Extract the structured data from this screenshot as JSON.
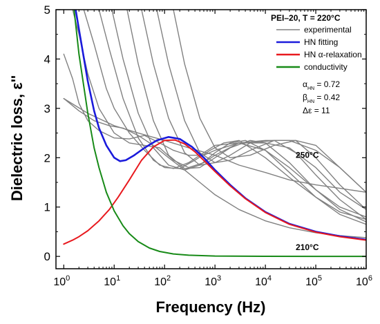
{
  "chart_data": {
    "type": "line",
    "x_scale": "log",
    "xlim": [
      0.7,
      1000000
    ],
    "ylim": [
      -0.25,
      5
    ],
    "xlabel": "Frequency (Hz)",
    "ylabel": "Dielectric loss, ε''",
    "x_tick_exponents": [
      0,
      1,
      2,
      3,
      4,
      5,
      6
    ],
    "x_tick_base": "10",
    "y_ticks": [
      "0",
      "1",
      "2",
      "3",
      "4",
      "5"
    ],
    "grid": false,
    "legend_title": "PEI–20, T = 220°C",
    "legend_position": "top-right",
    "legend": [
      {
        "label": "experimental",
        "color": "#808080"
      },
      {
        "label": "HN fitting",
        "color": "#1a1adb"
      },
      {
        "label": "HN α-relaxation",
        "color": "#e8191e"
      },
      {
        "label": "conductivity",
        "color": "#178a17"
      }
    ],
    "params": [
      {
        "sym": "α",
        "sub": "HN",
        "value": " = 0.72"
      },
      {
        "sym": "β",
        "sub": "HN",
        "value": " = 0.42"
      },
      {
        "sym": "Δε",
        "sub": "",
        "value": " = 11"
      }
    ],
    "annotations": [
      {
        "text": "250°C",
        "x": 40000,
        "y": 2.0
      },
      {
        "text": "210°C",
        "x": 40000,
        "y": 0.13
      }
    ],
    "series": [
      {
        "role": "experimental",
        "color": "#808080",
        "points": [
          [
            1,
            3.2
          ],
          [
            3,
            2.9
          ],
          [
            10,
            2.65
          ],
          [
            30,
            2.5
          ],
          [
            100,
            2.35
          ],
          [
            300,
            2.2
          ],
          [
            1000,
            2.05
          ],
          [
            3000,
            1.85
          ],
          [
            10000,
            1.7
          ],
          [
            30000,
            1.55
          ],
          [
            100000,
            1.45
          ],
          [
            300000,
            1.38
          ],
          [
            1000000,
            1.3
          ]
        ]
      },
      {
        "role": "experimental",
        "color": "#808080",
        "points": [
          [
            1,
            4.1
          ],
          [
            1.5,
            3.6
          ],
          [
            2,
            3.1
          ],
          [
            3,
            2.75
          ],
          [
            5,
            2.55
          ],
          [
            10,
            2.4
          ],
          [
            20,
            2.38
          ],
          [
            40,
            2.45
          ],
          [
            80,
            2.3
          ],
          [
            150,
            2.15
          ],
          [
            300,
            2.05
          ],
          [
            600,
            2.05
          ],
          [
            1000,
            2.15
          ],
          [
            3000,
            2.3
          ],
          [
            10000,
            2.35
          ],
          [
            30000,
            2.35
          ],
          [
            100000,
            2.15
          ],
          [
            300000,
            1.8
          ],
          [
            1000000,
            1.3
          ]
        ]
      },
      {
        "role": "experimental",
        "color": "#808080",
        "points": [
          [
            1.5,
            5.0
          ],
          [
            2,
            4.5
          ],
          [
            3,
            3.7
          ],
          [
            5,
            3.0
          ],
          [
            10,
            2.5
          ],
          [
            20,
            2.3
          ],
          [
            40,
            2.25
          ],
          [
            80,
            2.2
          ],
          [
            150,
            1.95
          ],
          [
            300,
            1.8
          ],
          [
            600,
            1.9
          ],
          [
            1000,
            2.05
          ],
          [
            3000,
            2.3
          ],
          [
            10000,
            2.3
          ],
          [
            30000,
            2.2
          ],
          [
            100000,
            1.8
          ],
          [
            300000,
            1.3
          ],
          [
            1000000,
            0.95
          ]
        ]
      },
      {
        "role": "experimental",
        "color": "#808080",
        "points": [
          [
            2.5,
            5.0
          ],
          [
            4,
            4.3
          ],
          [
            7,
            3.4
          ],
          [
            10,
            3.0
          ],
          [
            20,
            2.5
          ],
          [
            40,
            2.15
          ],
          [
            80,
            1.85
          ],
          [
            150,
            1.78
          ],
          [
            300,
            1.9
          ],
          [
            600,
            2.1
          ],
          [
            1000,
            2.25
          ],
          [
            3000,
            2.3
          ],
          [
            10000,
            2.15
          ],
          [
            30000,
            1.8
          ],
          [
            100000,
            1.35
          ],
          [
            300000,
            1.0
          ],
          [
            1000000,
            0.8
          ]
        ]
      },
      {
        "role": "experimental",
        "color": "#808080",
        "points": [
          [
            5,
            5.0
          ],
          [
            8,
            4.2
          ],
          [
            15,
            3.2
          ],
          [
            30,
            2.4
          ],
          [
            60,
            1.95
          ],
          [
            100,
            1.8
          ],
          [
            200,
            1.78
          ],
          [
            400,
            1.95
          ],
          [
            800,
            2.15
          ],
          [
            1500,
            2.3
          ],
          [
            3000,
            2.35
          ],
          [
            10000,
            2.0
          ],
          [
            30000,
            1.6
          ],
          [
            100000,
            1.2
          ],
          [
            300000,
            0.9
          ],
          [
            1000000,
            0.75
          ]
        ]
      },
      {
        "role": "experimental",
        "color": "#808080",
        "points": [
          [
            9,
            5.0
          ],
          [
            15,
            4.0
          ],
          [
            30,
            2.9
          ],
          [
            60,
            2.2
          ],
          [
            120,
            1.85
          ],
          [
            250,
            1.75
          ],
          [
            500,
            1.85
          ],
          [
            1000,
            2.1
          ],
          [
            2000,
            2.3
          ],
          [
            4000,
            2.35
          ],
          [
            10000,
            2.15
          ],
          [
            30000,
            1.7
          ],
          [
            100000,
            1.2
          ],
          [
            300000,
            0.85
          ],
          [
            1000000,
            0.65
          ]
        ]
      },
      {
        "role": "experimental",
        "color": "#808080",
        "points": [
          [
            18,
            5.0
          ],
          [
            30,
            3.9
          ],
          [
            60,
            2.75
          ],
          [
            120,
            2.05
          ],
          [
            250,
            1.78
          ],
          [
            500,
            1.8
          ],
          [
            1000,
            2.0
          ],
          [
            2000,
            2.2
          ],
          [
            5000,
            2.35
          ],
          [
            10000,
            2.3
          ],
          [
            30000,
            1.9
          ],
          [
            100000,
            1.35
          ],
          [
            300000,
            0.95
          ],
          [
            1000000,
            0.7
          ]
        ]
      },
      {
        "role": "experimental",
        "color": "#808080",
        "points": [
          [
            35,
            5.0
          ],
          [
            60,
            3.9
          ],
          [
            120,
            2.8
          ],
          [
            250,
            2.1
          ],
          [
            500,
            1.85
          ],
          [
            1000,
            1.9
          ],
          [
            2000,
            2.05
          ],
          [
            5000,
            2.3
          ],
          [
            15000,
            2.35
          ],
          [
            40000,
            2.1
          ],
          [
            100000,
            1.65
          ],
          [
            300000,
            1.15
          ],
          [
            1000000,
            0.75
          ]
        ]
      },
      {
        "role": "experimental",
        "color": "#808080",
        "points": [
          [
            70,
            5.0
          ],
          [
            120,
            3.9
          ],
          [
            250,
            2.75
          ],
          [
            500,
            2.1
          ],
          [
            1000,
            1.9
          ],
          [
            2000,
            1.95
          ],
          [
            5000,
            2.15
          ],
          [
            15000,
            2.35
          ],
          [
            40000,
            2.35
          ],
          [
            100000,
            2.0
          ],
          [
            300000,
            1.45
          ],
          [
            1000000,
            0.95
          ]
        ]
      },
      {
        "role": "experimental",
        "color": "#808080",
        "points": [
          [
            150,
            5.0
          ],
          [
            250,
            3.9
          ],
          [
            500,
            2.8
          ],
          [
            1000,
            2.2
          ],
          [
            2000,
            2.0
          ],
          [
            5000,
            2.05
          ],
          [
            15000,
            2.25
          ],
          [
            40000,
            2.35
          ],
          [
            100000,
            2.25
          ],
          [
            300000,
            1.8
          ],
          [
            1000000,
            1.3
          ]
        ]
      },
      {
        "role": "experimental",
        "color": "#808080",
        "points": [
          [
            1,
            3.2
          ],
          [
            2,
            2.95
          ],
          [
            4,
            2.75
          ],
          [
            8,
            2.65
          ],
          [
            15,
            2.6
          ],
          [
            30,
            2.45
          ],
          [
            60,
            2.25
          ],
          [
            120,
            2.0
          ],
          [
            250,
            1.75
          ],
          [
            500,
            1.5
          ],
          [
            1000,
            1.25
          ],
          [
            3000,
            0.95
          ],
          [
            10000,
            0.72
          ],
          [
            30000,
            0.58
          ],
          [
            100000,
            0.48
          ],
          [
            300000,
            0.42
          ],
          [
            1000000,
            0.38
          ]
        ]
      },
      {
        "role": "HN fitting",
        "color": "#1a1adb",
        "points": [
          [
            1.72,
            5.0
          ],
          [
            2,
            4.6
          ],
          [
            3,
            3.55
          ],
          [
            4,
            2.95
          ],
          [
            5,
            2.6
          ],
          [
            7,
            2.25
          ],
          [
            10,
            2.0
          ],
          [
            13,
            1.93
          ],
          [
            17,
            1.95
          ],
          [
            25,
            2.05
          ],
          [
            40,
            2.2
          ],
          [
            70,
            2.35
          ],
          [
            120,
            2.42
          ],
          [
            200,
            2.38
          ],
          [
            350,
            2.22
          ],
          [
            600,
            2.0
          ],
          [
            1000,
            1.75
          ],
          [
            2000,
            1.45
          ],
          [
            4000,
            1.18
          ],
          [
            10000,
            0.9
          ],
          [
            30000,
            0.66
          ],
          [
            100000,
            0.5
          ],
          [
            300000,
            0.41
          ],
          [
            1000000,
            0.34
          ]
        ]
      },
      {
        "role": "HN α-relaxation",
        "color": "#e8191e",
        "points": [
          [
            1,
            0.25
          ],
          [
            1.5,
            0.33
          ],
          [
            2,
            0.4
          ],
          [
            3,
            0.52
          ],
          [
            5,
            0.72
          ],
          [
            8,
            0.95
          ],
          [
            12,
            1.2
          ],
          [
            20,
            1.55
          ],
          [
            35,
            1.95
          ],
          [
            60,
            2.22
          ],
          [
            100,
            2.35
          ],
          [
            160,
            2.36
          ],
          [
            250,
            2.28
          ],
          [
            400,
            2.12
          ],
          [
            700,
            1.88
          ],
          [
            1000,
            1.72
          ],
          [
            2000,
            1.43
          ],
          [
            4000,
            1.17
          ],
          [
            10000,
            0.89
          ],
          [
            30000,
            0.65
          ],
          [
            100000,
            0.49
          ],
          [
            300000,
            0.4
          ],
          [
            1000000,
            0.33
          ]
        ]
      },
      {
        "role": "conductivity",
        "color": "#178a17",
        "points": [
          [
            1.6,
            5.0
          ],
          [
            2,
            4.1
          ],
          [
            3,
            2.9
          ],
          [
            4,
            2.2
          ],
          [
            5,
            1.8
          ],
          [
            7,
            1.3
          ],
          [
            10,
            0.92
          ],
          [
            15,
            0.62
          ],
          [
            20,
            0.46
          ],
          [
            30,
            0.3
          ],
          [
            50,
            0.17
          ],
          [
            80,
            0.1
          ],
          [
            150,
            0.05
          ],
          [
            300,
            0.025
          ],
          [
            1000,
            0.008
          ],
          [
            10000,
            0.002
          ],
          [
            100000,
            0.001
          ],
          [
            1000000,
            0.0
          ]
        ]
      }
    ]
  }
}
